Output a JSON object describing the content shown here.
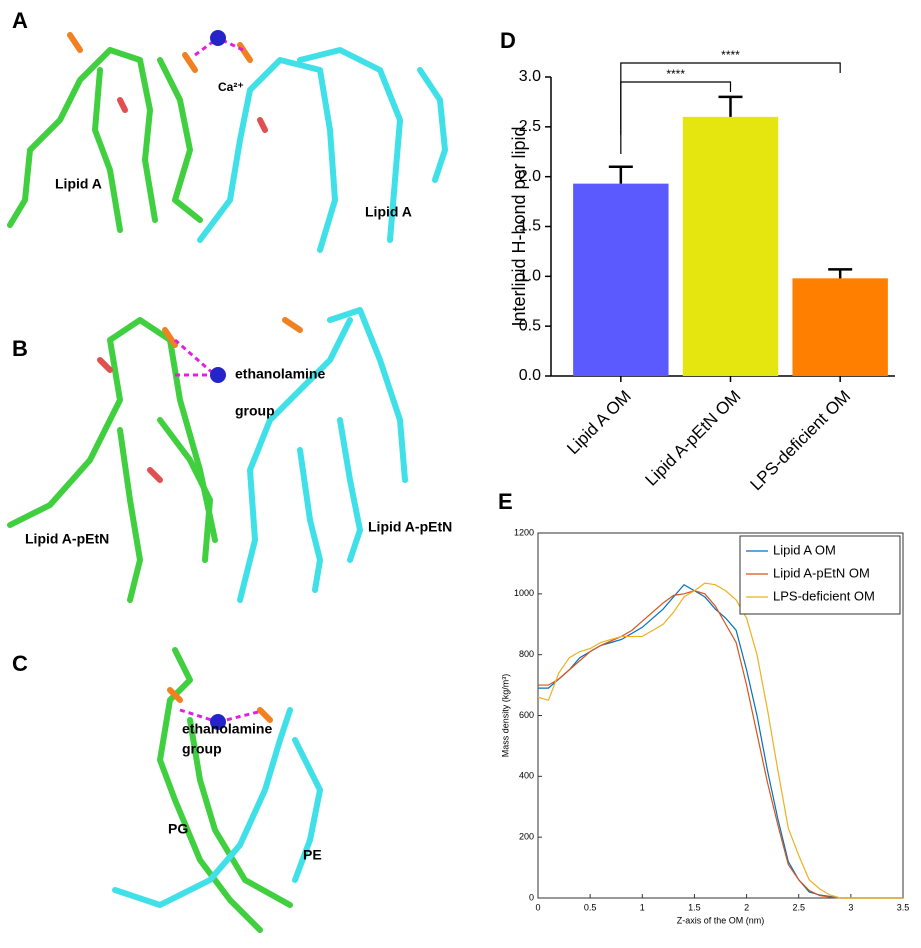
{
  "panels": [
    {
      "label": "A",
      "texts": [
        "Lipid A",
        "Ca²⁺",
        "Lipid A"
      ]
    },
    {
      "label": "B",
      "texts": [
        "ethanolamine",
        "group",
        "Lipid A-pEtN",
        "Lipid A-pEtN"
      ]
    },
    {
      "label": "C",
      "texts": [
        "ethanolamine",
        "group",
        "PG",
        "PE"
      ]
    }
  ],
  "chart_data": [
    {
      "type": "bar",
      "panel": "D",
      "y_label": "Interlipid H-bond per lipid",
      "categories": [
        "Lipid A OM",
        "Lipid A-pEtN OM",
        "LPS-deficient OM"
      ],
      "values": [
        1.93,
        2.6,
        0.98
      ],
      "errors": [
        0.17,
        0.2,
        0.09
      ],
      "colors": [
        "#5a5aff",
        "#e5e510",
        "#ff8000"
      ],
      "ylim": [
        0,
        3.0
      ],
      "yticks": [
        {
          "value": 0,
          "label": "0.0"
        },
        {
          "value": 0.5,
          "label": "0.5"
        },
        {
          "value": 1,
          "label": "1.0"
        },
        {
          "value": 1.5,
          "label": "1.5"
        },
        {
          "value": 2,
          "label": "2.0"
        },
        {
          "value": 2.5,
          "label": "2.5"
        },
        {
          "value": 3,
          "label": "3.0"
        }
      ],
      "significance": [
        {
          "label": "****",
          "pair": [
            0,
            1
          ]
        },
        {
          "label": "****",
          "pair": [
            0,
            2
          ]
        }
      ]
    },
    {
      "type": "line",
      "panel": "E",
      "x_label": "Z-axis of the OM (nm)",
      "y_label": "Mass density (kg/m³)",
      "x": [
        0,
        0.1,
        0.2,
        0.3,
        0.4,
        0.5,
        0.6,
        0.7,
        0.8,
        0.9,
        1.0,
        1.1,
        1.2,
        1.3,
        1.4,
        1.5,
        1.6,
        1.7,
        1.8,
        1.9,
        2.0,
        2.1,
        2.2,
        2.3,
        2.4,
        2.5,
        2.6,
        2.7,
        2.8,
        2.9,
        3.0,
        3.5
      ],
      "series": [
        {
          "name": "Lipid A OM",
          "color": "#0072bd",
          "values": [
            690,
            690,
            720,
            750,
            790,
            810,
            830,
            840,
            850,
            870,
            890,
            920,
            950,
            990,
            1030,
            1010,
            990,
            950,
            920,
            880,
            750,
            600,
            420,
            260,
            120,
            60,
            20,
            10,
            5,
            0,
            0,
            0
          ]
        },
        {
          "name": "Lipid A-pEtN OM",
          "color": "#d95319",
          "values": [
            700,
            700,
            720,
            750,
            780,
            810,
            830,
            845,
            860,
            880,
            910,
            940,
            970,
            995,
            1000,
            1010,
            1000,
            960,
            900,
            840,
            700,
            540,
            380,
            240,
            110,
            60,
            25,
            8,
            3,
            0,
            0,
            0
          ]
        },
        {
          "name": "LPS-deficient OM",
          "color": "#edb120",
          "values": [
            660,
            650,
            740,
            790,
            810,
            820,
            840,
            850,
            860,
            860,
            860,
            880,
            900,
            940,
            990,
            1010,
            1035,
            1030,
            1010,
            980,
            920,
            800,
            620,
            420,
            230,
            140,
            60,
            30,
            10,
            0,
            0,
            0
          ]
        }
      ],
      "xlim": [
        0,
        3.5
      ],
      "xticks": [
        0,
        0.5,
        1,
        1.5,
        2,
        2.5,
        3,
        3.5
      ],
      "ylim": [
        0,
        1200
      ],
      "yticks": [
        0,
        200,
        400,
        600,
        800,
        1000,
        1200
      ],
      "legend": "top-right"
    }
  ]
}
